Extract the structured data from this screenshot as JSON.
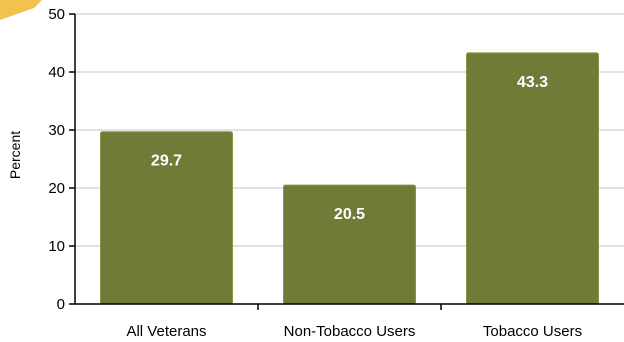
{
  "chart_data": {
    "type": "bar",
    "categories": [
      "All Veterans",
      "Non-Tobacco Users",
      "Tobacco Users"
    ],
    "values": [
      29.7,
      20.5,
      43.3
    ],
    "data_labels": [
      "29.7",
      "20.5",
      "43.3"
    ],
    "ylabel": "Percent",
    "ylim": [
      0,
      50
    ],
    "yticks": [
      0,
      10,
      20,
      30,
      40,
      50
    ],
    "ytick_labels": [
      "0",
      "10",
      "20",
      "30",
      "40",
      "50"
    ],
    "grid": true,
    "legend": "none",
    "colors": {
      "bar": "#727a37",
      "bar_highlight": "#8a9141",
      "grid": "#d9d9d9",
      "axis": "#000000",
      "corner_accent": "#f2c14e"
    }
  }
}
